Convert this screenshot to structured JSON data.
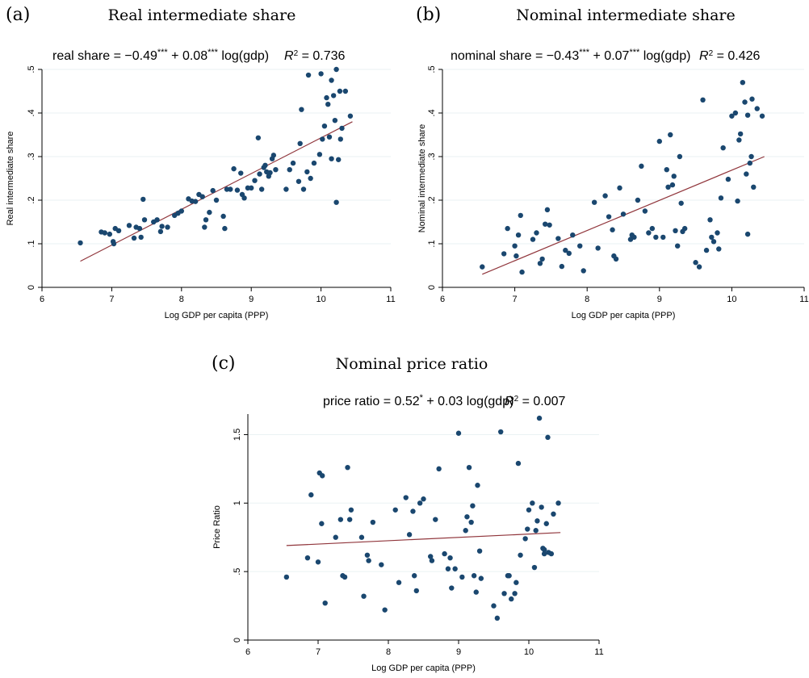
{
  "colors": {
    "point": "#1a476f",
    "fit": "#90353b",
    "grid": "#eaf2f3",
    "axis": "#000000"
  },
  "chart_data": [
    {
      "letter": "(a)",
      "title": "Real intermediate share",
      "type": "scatter",
      "equation": {
        "lhs": "real share = −0.49",
        "s1": "***",
        "mid": " + 0.08",
        "s2": "***",
        "rhs": " log(gdp)",
        "r2_label": "R",
        "r2_sup": "2",
        "r2_value": " = 0.736"
      },
      "xlabel": "Log GDP per capita (PPP)",
      "ylabel": "Real intermediate share",
      "xlim": [
        6,
        11
      ],
      "ylim": [
        0,
        0.5
      ],
      "xticks": [
        6,
        7,
        8,
        9,
        10,
        11
      ],
      "xtick_labels": [
        "6",
        "7",
        "8",
        "9",
        "10",
        "11"
      ],
      "yticks": [
        0,
        0.1,
        0.2,
        0.3,
        0.4,
        0.5
      ],
      "ytick_labels": [
        "0",
        ".1",
        ".2",
        ".3",
        ".4",
        ".5"
      ],
      "fit": {
        "x": [
          6.55,
          10.45
        ],
        "y": [
          0.06,
          0.38
        ]
      },
      "points": [
        [
          6.55,
          0.102
        ],
        [
          6.85,
          0.127
        ],
        [
          6.9,
          0.125
        ],
        [
          6.97,
          0.122
        ],
        [
          7.02,
          0.105
        ],
        [
          7.03,
          0.1
        ],
        [
          7.05,
          0.135
        ],
        [
          7.1,
          0.13
        ],
        [
          7.25,
          0.142
        ],
        [
          7.32,
          0.113
        ],
        [
          7.35,
          0.138
        ],
        [
          7.4,
          0.135
        ],
        [
          7.42,
          0.115
        ],
        [
          7.45,
          0.202
        ],
        [
          7.47,
          0.155
        ],
        [
          7.6,
          0.15
        ],
        [
          7.65,
          0.155
        ],
        [
          7.7,
          0.128
        ],
        [
          7.72,
          0.14
        ],
        [
          7.8,
          0.138
        ],
        [
          7.9,
          0.165
        ],
        [
          7.95,
          0.17
        ],
        [
          8.0,
          0.175
        ],
        [
          8.1,
          0.203
        ],
        [
          8.15,
          0.198
        ],
        [
          8.2,
          0.197
        ],
        [
          8.25,
          0.213
        ],
        [
          8.3,
          0.208
        ],
        [
          8.33,
          0.138
        ],
        [
          8.35,
          0.155
        ],
        [
          8.4,
          0.172
        ],
        [
          8.45,
          0.222
        ],
        [
          8.5,
          0.2
        ],
        [
          8.6,
          0.163
        ],
        [
          8.62,
          0.135
        ],
        [
          8.65,
          0.225
        ],
        [
          8.7,
          0.225
        ],
        [
          8.75,
          0.272
        ],
        [
          8.8,
          0.223
        ],
        [
          8.85,
          0.262
        ],
        [
          8.87,
          0.213
        ],
        [
          8.9,
          0.205
        ],
        [
          8.95,
          0.228
        ],
        [
          9.0,
          0.228
        ],
        [
          9.05,
          0.245
        ],
        [
          9.1,
          0.343
        ],
        [
          9.12,
          0.26
        ],
        [
          9.15,
          0.225
        ],
        [
          9.18,
          0.275
        ],
        [
          9.2,
          0.28
        ],
        [
          9.22,
          0.265
        ],
        [
          9.25,
          0.255
        ],
        [
          9.27,
          0.263
        ],
        [
          9.3,
          0.295
        ],
        [
          9.32,
          0.303
        ],
        [
          9.35,
          0.27
        ],
        [
          9.5,
          0.225
        ],
        [
          9.55,
          0.27
        ],
        [
          9.6,
          0.285
        ],
        [
          9.68,
          0.243
        ],
        [
          9.7,
          0.33
        ],
        [
          9.72,
          0.408
        ],
        [
          9.75,
          0.225
        ],
        [
          9.8,
          0.265
        ],
        [
          9.82,
          0.487
        ],
        [
          9.85,
          0.25
        ],
        [
          9.9,
          0.285
        ],
        [
          9.98,
          0.305
        ],
        [
          10.0,
          0.49
        ],
        [
          10.02,
          0.34
        ],
        [
          10.05,
          0.37
        ],
        [
          10.08,
          0.435
        ],
        [
          10.1,
          0.42
        ],
        [
          10.12,
          0.345
        ],
        [
          10.15,
          0.295
        ],
        [
          10.18,
          0.44
        ],
        [
          10.2,
          0.383
        ],
        [
          10.22,
          0.5
        ],
        [
          10.22,
          0.195
        ],
        [
          10.25,
          0.293
        ],
        [
          10.27,
          0.45
        ],
        [
          10.28,
          0.34
        ],
        [
          10.3,
          0.365
        ],
        [
          10.35,
          0.45
        ],
        [
          10.42,
          0.393
        ],
        [
          10.15,
          0.475
        ]
      ]
    },
    {
      "letter": "(b)",
      "title": "Nominal intermediate share",
      "type": "scatter",
      "equation": {
        "lhs": "nominal share = −0.43",
        "s1": "***",
        "mid": " + 0.07",
        "s2": "***",
        "rhs": " log(gdp)",
        "r2_label": "R",
        "r2_sup": "2",
        "r2_value": " = 0.426"
      },
      "xlabel": "Log GDP per capita (PPP)",
      "ylabel": "Nominal intermediate share",
      "xlim": [
        6,
        11
      ],
      "ylim": [
        0,
        0.5
      ],
      "xticks": [
        6,
        7,
        8,
        9,
        10,
        11
      ],
      "xtick_labels": [
        "6",
        "7",
        "8",
        "9",
        "10",
        "11"
      ],
      "yticks": [
        0,
        0.1,
        0.2,
        0.3,
        0.4,
        0.5
      ],
      "ytick_labels": [
        "0",
        ".1",
        ".2",
        ".3",
        ".4",
        ".5"
      ],
      "fit": {
        "x": [
          6.55,
          10.45
        ],
        "y": [
          0.03,
          0.3
        ]
      },
      "points": [
        [
          6.55,
          0.047
        ],
        [
          6.85,
          0.077
        ],
        [
          6.9,
          0.135
        ],
        [
          7.0,
          0.095
        ],
        [
          7.02,
          0.072
        ],
        [
          7.05,
          0.12
        ],
        [
          7.08,
          0.165
        ],
        [
          7.1,
          0.035
        ],
        [
          7.25,
          0.11
        ],
        [
          7.3,
          0.125
        ],
        [
          7.35,
          0.055
        ],
        [
          7.38,
          0.065
        ],
        [
          7.42,
          0.145
        ],
        [
          7.45,
          0.178
        ],
        [
          7.48,
          0.143
        ],
        [
          7.6,
          0.112
        ],
        [
          7.65,
          0.048
        ],
        [
          7.7,
          0.085
        ],
        [
          7.75,
          0.078
        ],
        [
          7.8,
          0.12
        ],
        [
          7.9,
          0.095
        ],
        [
          7.95,
          0.038
        ],
        [
          8.1,
          0.195
        ],
        [
          8.15,
          0.09
        ],
        [
          8.25,
          0.21
        ],
        [
          8.3,
          0.162
        ],
        [
          8.35,
          0.132
        ],
        [
          8.37,
          0.072
        ],
        [
          8.4,
          0.065
        ],
        [
          8.45,
          0.228
        ],
        [
          8.5,
          0.168
        ],
        [
          8.6,
          0.11
        ],
        [
          8.62,
          0.12
        ],
        [
          8.65,
          0.115
        ],
        [
          8.7,
          0.2
        ],
        [
          8.75,
          0.278
        ],
        [
          8.8,
          0.175
        ],
        [
          8.85,
          0.125
        ],
        [
          8.9,
          0.135
        ],
        [
          8.95,
          0.115
        ],
        [
          9.0,
          0.335
        ],
        [
          9.05,
          0.115
        ],
        [
          9.1,
          0.27
        ],
        [
          9.12,
          0.23
        ],
        [
          9.15,
          0.35
        ],
        [
          9.18,
          0.235
        ],
        [
          9.2,
          0.255
        ],
        [
          9.22,
          0.13
        ],
        [
          9.25,
          0.095
        ],
        [
          9.28,
          0.3
        ],
        [
          9.3,
          0.193
        ],
        [
          9.32,
          0.128
        ],
        [
          9.35,
          0.135
        ],
        [
          9.5,
          0.057
        ],
        [
          9.55,
          0.047
        ],
        [
          9.6,
          0.43
        ],
        [
          9.65,
          0.085
        ],
        [
          9.7,
          0.155
        ],
        [
          9.72,
          0.115
        ],
        [
          9.75,
          0.105
        ],
        [
          9.8,
          0.125
        ],
        [
          9.82,
          0.088
        ],
        [
          9.85,
          0.205
        ],
        [
          9.88,
          0.32
        ],
        [
          9.95,
          0.248
        ],
        [
          10.0,
          0.393
        ],
        [
          10.05,
          0.4
        ],
        [
          10.08,
          0.198
        ],
        [
          10.1,
          0.338
        ],
        [
          10.12,
          0.352
        ],
        [
          10.15,
          0.47
        ],
        [
          10.18,
          0.425
        ],
        [
          10.2,
          0.26
        ],
        [
          10.22,
          0.395
        ],
        [
          10.22,
          0.122
        ],
        [
          10.25,
          0.285
        ],
        [
          10.27,
          0.3
        ],
        [
          10.28,
          0.432
        ],
        [
          10.3,
          0.23
        ],
        [
          10.35,
          0.41
        ],
        [
          10.42,
          0.393
        ]
      ]
    },
    {
      "letter": "(c)",
      "title": "Nominal price ratio",
      "type": "scatter",
      "equation": {
        "lhs": "price ratio = 0.52",
        "s1": "*",
        "mid": " + 0.03",
        "s2": "",
        "rhs": " log(gdp)",
        "r2_label": "R",
        "r2_sup": "2",
        "r2_value": " = 0.007"
      },
      "xlabel": "Log GDP per capita (PPP)",
      "ylabel": "Price Ratio",
      "xlim": [
        6,
        11
      ],
      "ylim": [
        0,
        1.65
      ],
      "xticks": [
        6,
        7,
        8,
        9,
        10,
        11
      ],
      "xtick_labels": [
        "6",
        "7",
        "8",
        "9",
        "10",
        "11"
      ],
      "yticks": [
        0,
        0.5,
        1,
        1.5
      ],
      "ytick_labels": [
        "0",
        ".5",
        "1",
        "1.5"
      ],
      "fit": {
        "x": [
          6.55,
          10.45
        ],
        "y": [
          0.69,
          0.785
        ]
      },
      "points": [
        [
          6.55,
          0.46
        ],
        [
          6.85,
          0.6
        ],
        [
          6.9,
          1.06
        ],
        [
          7.0,
          0.57
        ],
        [
          7.02,
          1.22
        ],
        [
          7.05,
          0.85
        ],
        [
          7.06,
          1.2
        ],
        [
          7.1,
          0.27
        ],
        [
          7.25,
          0.75
        ],
        [
          7.32,
          0.88
        ],
        [
          7.35,
          0.47
        ],
        [
          7.38,
          0.46
        ],
        [
          7.42,
          1.26
        ],
        [
          7.45,
          0.88
        ],
        [
          7.47,
          0.95
        ],
        [
          7.62,
          0.75
        ],
        [
          7.65,
          0.32
        ],
        [
          7.7,
          0.62
        ],
        [
          7.72,
          0.58
        ],
        [
          7.78,
          0.86
        ],
        [
          7.9,
          0.55
        ],
        [
          7.95,
          0.22
        ],
        [
          8.1,
          0.95
        ],
        [
          8.15,
          0.42
        ],
        [
          8.25,
          1.04
        ],
        [
          8.3,
          0.77
        ],
        [
          8.35,
          0.94
        ],
        [
          8.37,
          0.47
        ],
        [
          8.4,
          0.36
        ],
        [
          8.45,
          1.0
        ],
        [
          8.5,
          1.03
        ],
        [
          8.6,
          0.61
        ],
        [
          8.62,
          0.58
        ],
        [
          8.67,
          0.88
        ],
        [
          8.72,
          1.25
        ],
        [
          8.8,
          0.63
        ],
        [
          8.85,
          0.52
        ],
        [
          8.88,
          0.6
        ],
        [
          8.9,
          0.38
        ],
        [
          8.95,
          0.52
        ],
        [
          9.0,
          1.51
        ],
        [
          9.05,
          0.46
        ],
        [
          9.1,
          0.8
        ],
        [
          9.12,
          0.9
        ],
        [
          9.15,
          1.26
        ],
        [
          9.18,
          0.86
        ],
        [
          9.2,
          0.98
        ],
        [
          9.22,
          0.47
        ],
        [
          9.25,
          0.35
        ],
        [
          9.27,
          1.13
        ],
        [
          9.3,
          0.65
        ],
        [
          9.32,
          0.45
        ],
        [
          9.5,
          0.25
        ],
        [
          9.55,
          0.16
        ],
        [
          9.6,
          1.52
        ],
        [
          9.65,
          0.34
        ],
        [
          9.7,
          0.47
        ],
        [
          9.72,
          0.47
        ],
        [
          9.75,
          0.3
        ],
        [
          9.8,
          0.34
        ],
        [
          9.82,
          0.42
        ],
        [
          9.85,
          1.29
        ],
        [
          9.88,
          0.62
        ],
        [
          9.95,
          0.74
        ],
        [
          9.98,
          0.81
        ],
        [
          10.0,
          0.95
        ],
        [
          10.05,
          1.0
        ],
        [
          10.08,
          0.53
        ],
        [
          10.1,
          0.8
        ],
        [
          10.12,
          0.87
        ],
        [
          10.15,
          1.62
        ],
        [
          10.18,
          0.97
        ],
        [
          10.2,
          0.67
        ],
        [
          10.22,
          0.66
        ],
        [
          10.22,
          0.63
        ],
        [
          10.25,
          0.85
        ],
        [
          10.27,
          1.48
        ],
        [
          10.28,
          0.64
        ],
        [
          10.32,
          0.63
        ],
        [
          10.35,
          0.92
        ],
        [
          10.42,
          1.0
        ]
      ]
    }
  ]
}
